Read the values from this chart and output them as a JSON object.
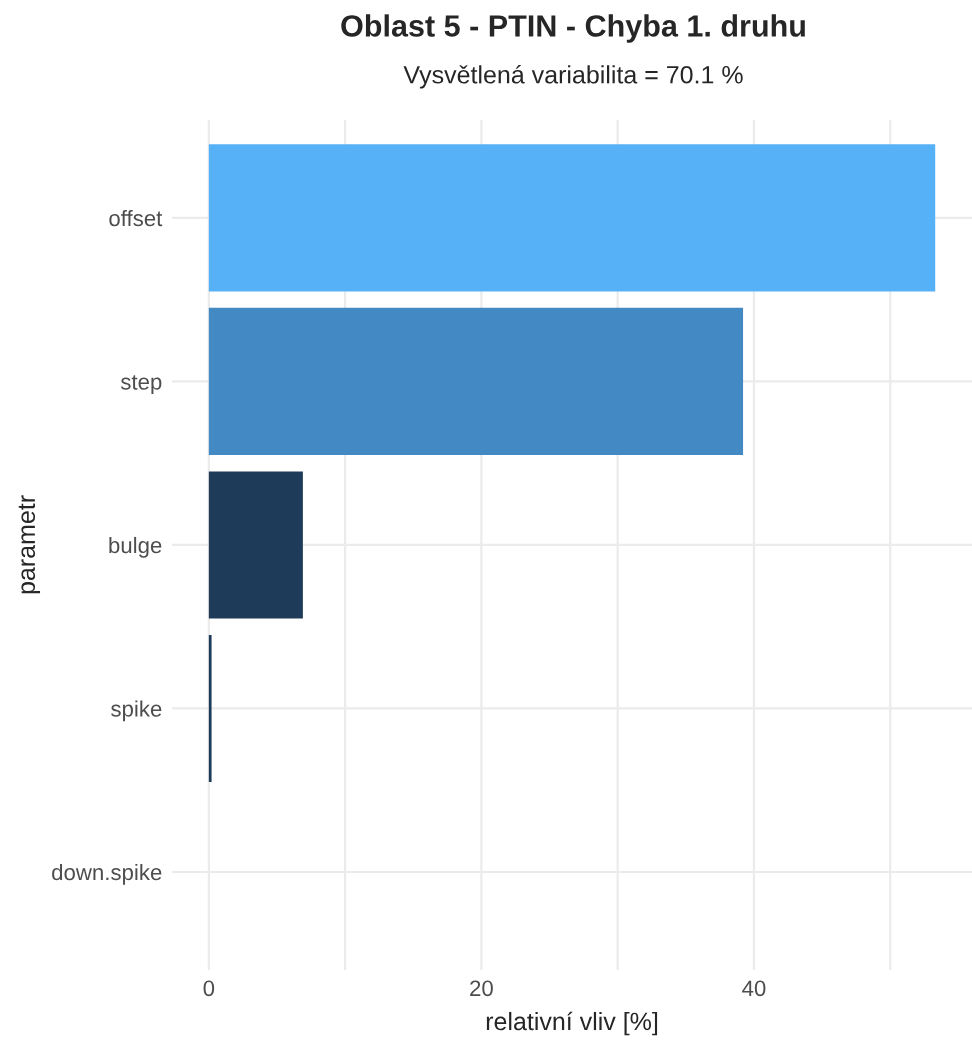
{
  "chart_data": {
    "type": "bar",
    "orientation": "horizontal",
    "title": "Oblast 5 - PTIN - Chyba 1. druhu",
    "subtitle": "Vysvětlená variabilita = 70.1 %",
    "xlabel": "relativní vliv [%]",
    "ylabel": "parametr",
    "categories": [
      "offset",
      "step",
      "bulge",
      "spike",
      "down.spike"
    ],
    "values": [
      53.3,
      39.2,
      6.9,
      0.2,
      null
    ],
    "colors": [
      "#56b1f7",
      "#4389c4",
      "#1e3b59",
      "#1d3a58",
      null
    ],
    "xlim": [
      -2.7,
      56
    ],
    "xticks": [
      0,
      {
        "value": 10,
        "label": null
      },
      20,
      {
        "value": 30,
        "label": null
      },
      40,
      {
        "value": 50,
        "label": null
      }
    ],
    "grid": true
  }
}
